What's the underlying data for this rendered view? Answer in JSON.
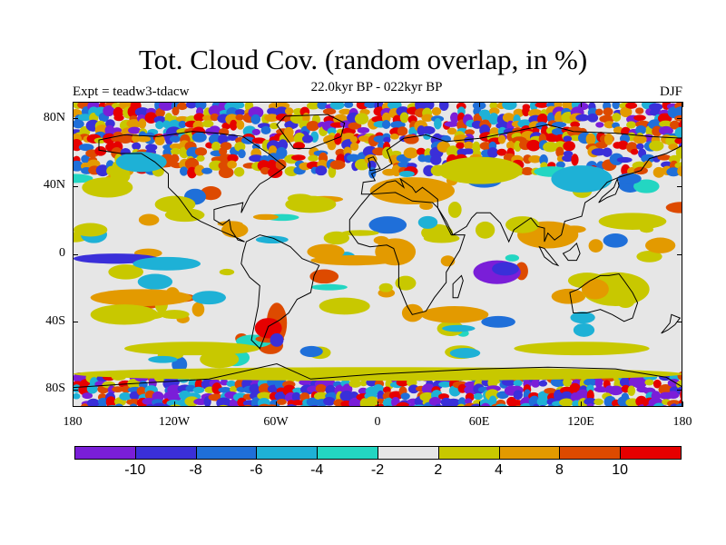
{
  "title": "Tot. Cloud Cov. (random overlap, in %)",
  "subtitle": "22.0kyr BP - 022kyr BP",
  "experiment": "Expt = teadw3-tdacw",
  "season": "DJF",
  "axes": {
    "x_ticks": [
      {
        "value": -180,
        "label": "180"
      },
      {
        "value": -120,
        "label": "120W"
      },
      {
        "value": -60,
        "label": "60W"
      },
      {
        "value": 0,
        "label": "0"
      },
      {
        "value": 60,
        "label": "60E"
      },
      {
        "value": 120,
        "label": "120E"
      },
      {
        "value": 180,
        "label": "180"
      }
    ],
    "y_ticks": [
      {
        "value": 80,
        "label": "80N"
      },
      {
        "value": 40,
        "label": "40N"
      },
      {
        "value": 0,
        "label": "0"
      },
      {
        "value": -40,
        "label": "40S"
      },
      {
        "value": -80,
        "label": "80S"
      }
    ],
    "lon_range": [
      -180,
      180
    ],
    "lat_range": [
      -90,
      90
    ]
  },
  "colorbar": {
    "colors": [
      "#7a1ed8",
      "#3a2fd9",
      "#1f6fd9",
      "#1eb1d6",
      "#23d6c2",
      "#e6e6e6",
      "#c8c800",
      "#e39a00",
      "#dd4a00",
      "#e60000"
    ],
    "labels": [
      {
        "text": "-10",
        "boundary": 1
      },
      {
        "text": "-8",
        "boundary": 2
      },
      {
        "text": "-6",
        "boundary": 3
      },
      {
        "text": "-4",
        "boundary": 4
      },
      {
        "text": "-2",
        "boundary": 5
      },
      {
        "text": "2",
        "boundary": 6
      },
      {
        "text": "4",
        "boundary": 7
      },
      {
        "text": "8",
        "boundary": 8
      },
      {
        "text": "10",
        "boundary": 9
      }
    ]
  },
  "anomaly_regions": [
    {
      "lon": -155,
      "lat": -2,
      "rlon": 25,
      "rlat": 3,
      "level": 1
    },
    {
      "lon": -125,
      "lat": -5,
      "rlon": 20,
      "rlat": 4,
      "level": 3
    },
    {
      "lon": 70,
      "lat": -10,
      "rlon": 14,
      "rlat": 7,
      "level": 0
    },
    {
      "lon": 75,
      "lat": -8,
      "rlon": 8,
      "rlat": 4,
      "level": 1
    },
    {
      "lon": -15,
      "lat": -3,
      "rlon": 25,
      "rlat": 3,
      "level": 7
    },
    {
      "lon": 10,
      "lat": 2,
      "rlon": 12,
      "rlat": 8,
      "level": 7
    },
    {
      "lon": -60,
      "lat": -40,
      "rlon": 6,
      "rlat": 12,
      "level": 8
    },
    {
      "lon": -65,
      "lat": -43,
      "rlon": 8,
      "rlat": 6,
      "level": 9
    },
    {
      "lon": -60,
      "lat": -50,
      "rlon": 4,
      "rlat": 4,
      "level": 1
    },
    {
      "lon": 100,
      "lat": 12,
      "rlon": 18,
      "rlat": 8,
      "level": 7
    },
    {
      "lon": 85,
      "lat": 18,
      "rlon": 10,
      "rlat": 5,
      "level": 6
    },
    {
      "lon": 140,
      "lat": -20,
      "rlon": 20,
      "rlat": 10,
      "level": 6
    },
    {
      "lon": 128,
      "lat": -20,
      "rlon": 8,
      "rlat": 6,
      "level": 7
    },
    {
      "lon": -140,
      "lat": -25,
      "rlon": 30,
      "rlat": 5,
      "level": 7
    },
    {
      "lon": -150,
      "lat": -35,
      "rlon": 20,
      "rlat": 6,
      "level": 6
    },
    {
      "lon": -100,
      "lat": -25,
      "rlon": 10,
      "rlat": 4,
      "level": 3
    },
    {
      "lon": -20,
      "lat": -30,
      "rlon": 15,
      "rlat": 5,
      "level": 6
    },
    {
      "lon": 45,
      "lat": -35,
      "rlon": 20,
      "rlat": 5,
      "level": 7
    },
    {
      "lon": 20,
      "lat": 38,
      "rlon": 25,
      "rlat": 8,
      "level": 7
    },
    {
      "lon": 60,
      "lat": 50,
      "rlon": 25,
      "rlat": 8,
      "level": 6
    },
    {
      "lon": 120,
      "lat": 45,
      "rlon": 18,
      "rlat": 8,
      "level": 3
    },
    {
      "lon": -160,
      "lat": 40,
      "rlon": 15,
      "rlat": 6,
      "level": 6
    },
    {
      "lon": -120,
      "lat": 30,
      "rlon": 12,
      "rlat": 5,
      "level": 6
    },
    {
      "lon": -140,
      "lat": 55,
      "rlon": 15,
      "rlat": 6,
      "level": 3
    },
    {
      "lon": -40,
      "lat": 30,
      "rlon": 15,
      "rlat": 5,
      "level": 6
    },
    {
      "lon": 150,
      "lat": 20,
      "rlon": 20,
      "rlat": 5,
      "level": 6
    },
    {
      "lon": -170,
      "lat": 15,
      "rlon": 10,
      "rlat": 4,
      "level": 6
    },
    {
      "lon": 0,
      "lat": -70,
      "rlon": 180,
      "rlat": 4,
      "level": 6
    },
    {
      "lon": -110,
      "lat": -55,
      "rlon": 40,
      "rlat": 4,
      "level": 6
    },
    {
      "lon": 120,
      "lat": -55,
      "rlon": 40,
      "rlat": 4,
      "level": 6
    }
  ],
  "polar_bands": [
    {
      "lat_min": 70,
      "lat_max": 90,
      "levels": [
        0,
        1,
        2,
        3,
        6,
        7,
        8,
        9,
        5,
        5
      ]
    },
    {
      "lat_min": -90,
      "lat_max": -70,
      "levels": [
        0,
        0,
        1,
        1,
        2,
        3,
        6,
        8,
        9,
        5
      ]
    },
    {
      "lat_min": 50,
      "lat_max": 70,
      "levels": [
        1,
        2,
        6,
        7,
        8,
        9,
        5,
        5,
        5,
        5
      ]
    }
  ],
  "continents": [
    {
      "name": "north-america",
      "points": [
        [
          -165,
          68
        ],
        [
          -150,
          71
        ],
        [
          -130,
          70
        ],
        [
          -110,
          73
        ],
        [
          -95,
          72
        ],
        [
          -80,
          70
        ],
        [
          -65,
          60
        ],
        [
          -55,
          52
        ],
        [
          -65,
          45
        ],
        [
          -70,
          42
        ],
        [
          -76,
          35
        ],
        [
          -81,
          25
        ],
        [
          -80,
          31
        ],
        [
          -84,
          30
        ],
        [
          -90,
          29
        ],
        [
          -97,
          27
        ],
        [
          -97,
          21
        ],
        [
          -92,
          18
        ],
        [
          -88,
          21
        ],
        [
          -87,
          15
        ],
        [
          -83,
          9
        ],
        [
          -79,
          8
        ],
        [
          -85,
          11
        ],
        [
          -92,
          14
        ],
        [
          -105,
          20
        ],
        [
          -110,
          23
        ],
        [
          -115,
          30
        ],
        [
          -118,
          34
        ],
        [
          -124,
          40
        ],
        [
          -124,
          48
        ],
        [
          -132,
          55
        ],
        [
          -140,
          60
        ],
        [
          -152,
          60
        ],
        [
          -165,
          62
        ],
        [
          -165,
          68
        ]
      ]
    },
    {
      "name": "greenland",
      "points": [
        [
          -55,
          82
        ],
        [
          -30,
          83
        ],
        [
          -20,
          78
        ],
        [
          -22,
          70
        ],
        [
          -40,
          63
        ],
        [
          -50,
          63
        ],
        [
          -55,
          70
        ],
        [
          -60,
          77
        ],
        [
          -55,
          82
        ]
      ]
    },
    {
      "name": "south-america",
      "points": [
        [
          -78,
          8
        ],
        [
          -70,
          12
        ],
        [
          -62,
          10
        ],
        [
          -52,
          5
        ],
        [
          -45,
          -2
        ],
        [
          -35,
          -6
        ],
        [
          -38,
          -12
        ],
        [
          -40,
          -22
        ],
        [
          -48,
          -26
        ],
        [
          -53,
          -34
        ],
        [
          -58,
          -38
        ],
        [
          -65,
          -42
        ],
        [
          -68,
          -50
        ],
        [
          -70,
          -55
        ],
        [
          -75,
          -50
        ],
        [
          -73,
          -40
        ],
        [
          -71,
          -30
        ],
        [
          -70,
          -18
        ],
        [
          -76,
          -13
        ],
        [
          -81,
          -5
        ],
        [
          -80,
          1
        ],
        [
          -78,
          8
        ]
      ]
    },
    {
      "name": "africa",
      "points": [
        [
          -17,
          21
        ],
        [
          -10,
          30
        ],
        [
          -5,
          36
        ],
        [
          10,
          37
        ],
        [
          20,
          32
        ],
        [
          32,
          31
        ],
        [
          35,
          28
        ],
        [
          43,
          12
        ],
        [
          51,
          12
        ],
        [
          48,
          3
        ],
        [
          40,
          -10
        ],
        [
          40,
          -16
        ],
        [
          33,
          -25
        ],
        [
          28,
          -33
        ],
        [
          20,
          -35
        ],
        [
          17,
          -30
        ],
        [
          12,
          -18
        ],
        [
          12,
          -5
        ],
        [
          9,
          4
        ],
        [
          5,
          6
        ],
        [
          -5,
          5
        ],
        [
          -12,
          7
        ],
        [
          -17,
          14
        ],
        [
          -17,
          21
        ]
      ]
    },
    {
      "name": "eurasia",
      "points": [
        [
          -10,
          36
        ],
        [
          -9,
          43
        ],
        [
          -2,
          44
        ],
        [
          -4,
          48
        ],
        [
          3,
          51
        ],
        [
          8,
          54
        ],
        [
          5,
          62
        ],
        [
          15,
          69
        ],
        [
          28,
          71
        ],
        [
          40,
          67
        ],
        [
          60,
          69
        ],
        [
          80,
          73
        ],
        [
          100,
          77
        ],
        [
          115,
          73
        ],
        [
          140,
          72
        ],
        [
          160,
          70
        ],
        [
          180,
          69
        ],
        [
          180,
          65
        ],
        [
          170,
          60
        ],
        [
          160,
          57
        ],
        [
          155,
          50
        ],
        [
          142,
          46
        ],
        [
          135,
          43
        ],
        [
          128,
          35
        ],
        [
          122,
          31
        ],
        [
          120,
          23
        ],
        [
          110,
          20
        ],
        [
          108,
          12
        ],
        [
          104,
          9
        ],
        [
          100,
          13
        ],
        [
          98,
          8
        ],
        [
          98,
          16
        ],
        [
          94,
          17
        ],
        [
          90,
          22
        ],
        [
          80,
          15
        ],
        [
          77,
          8
        ],
        [
          72,
          19
        ],
        [
          66,
          25
        ],
        [
          58,
          25
        ],
        [
          55,
          22
        ],
        [
          52,
          17
        ],
        [
          44,
          12
        ],
        [
          40,
          20
        ],
        [
          35,
          28
        ],
        [
          35,
          33
        ],
        [
          30,
          37
        ],
        [
          26,
          40
        ],
        [
          22,
          37
        ],
        [
          20,
          40
        ],
        [
          13,
          45
        ],
        [
          15,
          40
        ],
        [
          10,
          44
        ],
        [
          5,
          43
        ],
        [
          -5,
          36
        ],
        [
          -10,
          36
        ]
      ]
    },
    {
      "name": "australia",
      "points": [
        [
          113,
          -22
        ],
        [
          115,
          -34
        ],
        [
          123,
          -34
        ],
        [
          131,
          -32
        ],
        [
          138,
          -35
        ],
        [
          145,
          -39
        ],
        [
          150,
          -37
        ],
        [
          153,
          -28
        ],
        [
          150,
          -22
        ],
        [
          145,
          -15
        ],
        [
          142,
          -11
        ],
        [
          136,
          -12
        ],
        [
          131,
          -12
        ],
        [
          125,
          -15
        ],
        [
          118,
          -20
        ],
        [
          113,
          -22
        ]
      ]
    },
    {
      "name": "antarctica",
      "points": [
        [
          -180,
          -78
        ],
        [
          -150,
          -76
        ],
        [
          -100,
          -73
        ],
        [
          -60,
          -64
        ],
        [
          -40,
          -73
        ],
        [
          0,
          -70
        ],
        [
          60,
          -67
        ],
        [
          100,
          -66
        ],
        [
          140,
          -67
        ],
        [
          170,
          -72
        ],
        [
          180,
          -78
        ]
      ]
    },
    {
      "name": "madagascar",
      "points": [
        [
          44,
          -25
        ],
        [
          47,
          -25
        ],
        [
          50,
          -15
        ],
        [
          49,
          -12
        ],
        [
          44,
          -17
        ],
        [
          44,
          -25
        ]
      ]
    },
    {
      "name": "borneo",
      "points": [
        [
          109,
          1
        ],
        [
          112,
          -3
        ],
        [
          117,
          -3
        ],
        [
          119,
          1
        ],
        [
          117,
          7
        ],
        [
          113,
          3
        ],
        [
          109,
          1
        ]
      ]
    },
    {
      "name": "sumatra",
      "points": [
        [
          95,
          5
        ],
        [
          98,
          4
        ],
        [
          106,
          -6
        ],
        [
          103,
          -5
        ],
        [
          98,
          -1
        ],
        [
          95,
          5
        ]
      ]
    },
    {
      "name": "japan",
      "points": [
        [
          130,
          31
        ],
        [
          135,
          34
        ],
        [
          140,
          36
        ],
        [
          142,
          41
        ],
        [
          141,
          45
        ],
        [
          139,
          40
        ],
        [
          132,
          34
        ],
        [
          130,
          31
        ]
      ]
    },
    {
      "name": "new-zealand",
      "points": [
        [
          167,
          -46
        ],
        [
          171,
          -44
        ],
        [
          175,
          -41
        ],
        [
          178,
          -37
        ],
        [
          173,
          -35
        ],
        [
          172,
          -40
        ],
        [
          167,
          -46
        ]
      ]
    },
    {
      "name": "uk",
      "points": [
        [
          -5,
          50
        ],
        [
          1,
          51
        ],
        [
          0,
          53
        ],
        [
          -3,
          58
        ],
        [
          -6,
          57
        ],
        [
          -5,
          54
        ],
        [
          -5,
          50
        ]
      ]
    }
  ]
}
